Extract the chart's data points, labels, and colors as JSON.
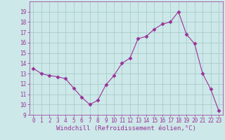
{
  "x": [
    0,
    1,
    2,
    3,
    4,
    5,
    6,
    7,
    8,
    9,
    10,
    11,
    12,
    13,
    14,
    15,
    16,
    17,
    18,
    19,
    20,
    21,
    22,
    23
  ],
  "y": [
    13.5,
    13.0,
    12.8,
    12.7,
    12.5,
    11.6,
    10.7,
    10.0,
    10.4,
    11.9,
    12.8,
    14.0,
    14.5,
    16.4,
    16.6,
    17.3,
    17.8,
    18.0,
    19.0,
    16.8,
    15.9,
    13.0,
    11.5,
    9.4
  ],
  "line_color": "#993399",
  "marker": "D",
  "marker_size": 2.5,
  "bg_color": "#cce8e8",
  "grid_color": "#aacccc",
  "xlabel": "Windchill (Refroidissement éolien,°C)",
  "xlabel_color": "#993399",
  "tick_color": "#993399",
  "ylim": [
    9,
    20
  ],
  "xlim": [
    -0.5,
    23.5
  ],
  "yticks": [
    9,
    10,
    11,
    12,
    13,
    14,
    15,
    16,
    17,
    18,
    19
  ],
  "xticks": [
    0,
    1,
    2,
    3,
    4,
    5,
    6,
    7,
    8,
    9,
    10,
    11,
    12,
    13,
    14,
    15,
    16,
    17,
    18,
    19,
    20,
    21,
    22,
    23
  ],
  "tick_fontsize": 5.5,
  "xlabel_fontsize": 6.5
}
